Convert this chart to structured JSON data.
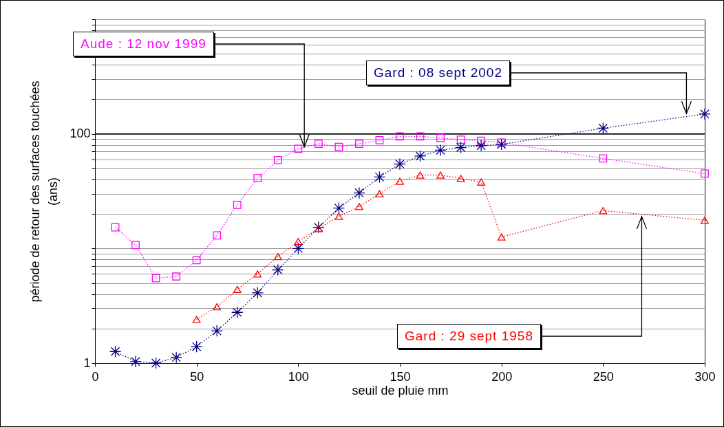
{
  "chart_data": {
    "type": "line",
    "xlabel": "seuil de pluie mm",
    "ylabel": "période de retour des surfaces touchées (ans)",
    "x": [
      10,
      20,
      30,
      40,
      50,
      60,
      70,
      80,
      90,
      100,
      110,
      120,
      130,
      140,
      150,
      160,
      170,
      180,
      190,
      200,
      250,
      300
    ],
    "series": [
      {
        "color": "#ff00ff",
        "marker": "square",
        "values": [
          15.3,
          10.7,
          5.5,
          5.7,
          7.9,
          13,
          24,
          41,
          59,
          74,
          82,
          77,
          82,
          88,
          95,
          95,
          92,
          89,
          87,
          84,
          61,
          45
        ]
      },
      {
        "color": "#000080",
        "marker": "cross",
        "values": [
          1.26,
          1.03,
          1.0,
          1.12,
          1.39,
          1.91,
          2.77,
          4.1,
          6.5,
          10,
          15.3,
          22.5,
          30.5,
          42,
          54.5,
          64,
          72,
          76,
          79,
          81,
          112,
          149
        ]
      },
      {
        "color": "#ff0000",
        "marker": "triangle",
        "values": [
          null,
          null,
          null,
          null,
          2.4,
          3.1,
          4.4,
          6.0,
          8.5,
          11.5,
          14.9,
          19.1,
          23.2,
          30,
          38.6,
          43.7,
          43.7,
          40.8,
          38,
          12.6,
          21.4,
          17.6
        ]
      }
    ],
    "line_style": "dotted",
    "log": true,
    "xlim": [
      0,
      300
    ],
    "xticks": [
      0,
      50,
      100,
      150,
      200,
      250,
      300
    ],
    "ylim": [
      1,
      1000
    ],
    "yticks": [
      1,
      {
        "value": 2,
        "label": null
      },
      {
        "value": 3,
        "label": null
      },
      {
        "value": 4,
        "label": null
      },
      {
        "value": 5,
        "label": null
      },
      {
        "value": 6,
        "label": null
      },
      {
        "value": 7,
        "label": null
      },
      {
        "value": 8,
        "label": null
      },
      {
        "value": 9,
        "label": null
      },
      {
        "value": 10,
        "label": null
      },
      {
        "value": 20,
        "label": null
      },
      {
        "value": 30,
        "label": null
      },
      {
        "value": 40,
        "label": null
      },
      {
        "value": 50,
        "label": null
      },
      {
        "value": 60,
        "label": null
      },
      {
        "value": 70,
        "label": null
      },
      {
        "value": 80,
        "label": null
      },
      {
        "value": 90,
        "label": null
      },
      100,
      {
        "value": 200,
        "label": null
      },
      {
        "value": 300,
        "label": null
      },
      {
        "value": 400,
        "label": null
      },
      {
        "value": 500,
        "label": null
      },
      {
        "value": 600,
        "label": null
      },
      {
        "value": 700,
        "label": null
      },
      {
        "value": 800,
        "label": null
      },
      {
        "value": 900,
        "label": null
      },
      {
        "value": 1000,
        "label": null
      }
    ],
    "grid": "y",
    "ref_lines": [
      {
        "axis": "y",
        "value": 100,
        "color": "#000000"
      }
    ],
    "annotations": [
      {
        "text": "Aude : 12 nov 1999",
        "x": 103,
        "y": 77
      },
      {
        "text": "Gard : 08 sept 2002",
        "x": 291,
        "y": 150
      },
      {
        "text": "Gard : 29 sept 1958",
        "x": 269,
        "y": 19
      }
    ]
  }
}
